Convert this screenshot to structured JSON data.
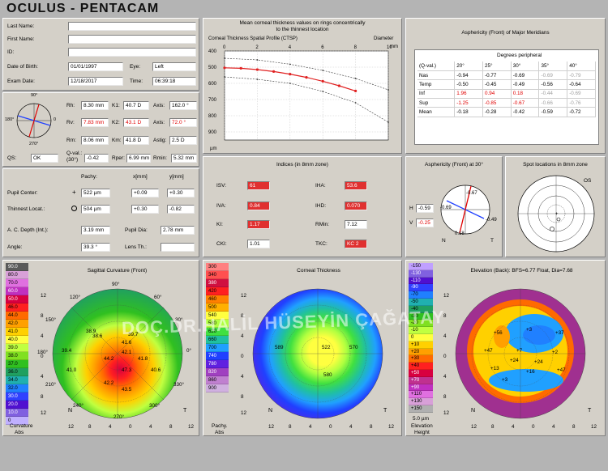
{
  "app_title": "OCULUS  -  PENTACAM",
  "patient": {
    "last_name_label": "Last Name:",
    "first_name_label": "First Name:",
    "id_label": "ID:",
    "dob_label": "Date of Birth:",
    "dob_value": "01/01/1997",
    "eye_label": "Eye:",
    "eye_value": "Left",
    "exam_date_label": "Exam Date:",
    "exam_date_value": "12/18/2017",
    "time_label": "Time:",
    "time_value": "06:39:18"
  },
  "kerato": {
    "rh_label": "Rh:",
    "rh": "8.30 mm",
    "k1_label": "K1:",
    "k1": "40.7 D",
    "axis1_label": "Axis:",
    "axis1": "162.0 °",
    "rv_label": "Rv:",
    "rv": "7.83 mm",
    "k2_label": "K2:",
    "k2": "43.1 D",
    "axis2_label": "Axis:",
    "axis2": "72.0 °",
    "rm_label": "Rm:",
    "rm": "8.06 mm",
    "km_label": "Km:",
    "km": "41.8 D",
    "astig_label": "Astig:",
    "astig": "2.5 D",
    "qs_label": "QS:",
    "qs": "OK",
    "qval_label": "Q-val.:",
    "qval_sub": "(30°)",
    "qval": "-0.42",
    "rper_label": "Rper:",
    "rper": "6.99 mm",
    "rmin_label": "Rmin:",
    "rmin": "5.32 mm",
    "dial_top": "90°",
    "dial_bottom": "270°",
    "dial_left": "180°",
    "dial_right": "0"
  },
  "pachy": {
    "col_pachy": "Pachy:",
    "col_x": "x[mm]",
    "col_y": "y[mm]",
    "pupil_center_label": "Pupil Center:",
    "pupil_center_pachy": "522 µm",
    "pupil_center_x": "+0.09",
    "pupil_center_y": "+0.30",
    "thinnest_label": "Thinnest Locat.:",
    "thinnest_pachy": "504 µm",
    "thinnest_x": "+0.30",
    "thinnest_y": "-0.82",
    "ac_depth_label": "A. C. Depth (Int.):",
    "ac_depth": "3.19 mm",
    "pupil_dia_label": "Pupil Dia:",
    "pupil_dia": "2.78 mm",
    "angle_label": "Angle:",
    "angle": "39.3 °",
    "lens_label": "Lens Th.:",
    "lens": ""
  },
  "thickness_graph": {
    "title_line1": "Mean corneal thickness values on rings concentrically",
    "title_line2": "to the thinnest location",
    "subtitle": "Corneal Thickness Spatial Profile (CTSP)",
    "diameter_label": "Diameter",
    "mm_label": "mm",
    "x_ticks": [
      "0",
      "2",
      "4",
      "6",
      "8",
      "10"
    ],
    "y_ticks": [
      "400",
      "500",
      "600",
      "700",
      "800",
      "900"
    ],
    "y_unit": "µm"
  },
  "chart_data": {
    "type": "line",
    "subtitle": "Corneal Thickness Spatial Profile (CTSP)",
    "xlabel": "Diameter mm",
    "ylabel": "µm",
    "xlim": [
      0,
      10
    ],
    "ylim": [
      400,
      950
    ],
    "y_inverted": true,
    "series": [
      {
        "x": [
          0,
          1,
          2,
          3,
          4,
          5,
          6,
          7,
          8
        ],
        "values": [
          504,
          507,
          515,
          527,
          543,
          563,
          587,
          615,
          647
        ]
      },
      {
        "x": [
          0,
          2,
          4,
          6,
          8,
          10
        ],
        "values": [
          445,
          455,
          482,
          520,
          570,
          640
        ]
      },
      {
        "x": [
          0,
          2,
          4,
          6,
          8,
          10
        ],
        "values": [
          560,
          575,
          600,
          650,
          720,
          840
        ]
      }
    ]
  },
  "asphericity": {
    "title": "Asphericity (Front) of Major Meridians",
    "degrees_label": "Degrees peripheral",
    "headers": [
      "(Q-val.)",
      "20°",
      "25°",
      "30°",
      "35°",
      "40°"
    ],
    "rows": [
      {
        "name": "Nas",
        "values": [
          "-0.94",
          "-0.77",
          "-0.69",
          "-0.69",
          "-0.79"
        ]
      },
      {
        "name": "Temp",
        "values": [
          "-0.50",
          "-0.45",
          "-0.49",
          "-0.56",
          "-0.64"
        ]
      },
      {
        "name": "Inf",
        "values": [
          "1.96",
          "0.94",
          "0.18",
          "-0.44",
          "-0.69"
        ]
      },
      {
        "name": "Sup",
        "values": [
          "-1.25",
          "-0.85",
          "-0.67",
          "-0.66",
          "-0.76"
        ]
      },
      {
        "name": "Mean",
        "values": [
          "-0.18",
          "-0.28",
          "-0.42",
          "-0.59",
          "-0.72"
        ]
      }
    ]
  },
  "indices": {
    "title": "Indices (in 8mm zone)",
    "isv_label": "ISV:",
    "isv": "61",
    "iha_label": "IHA:",
    "iha": "53.6",
    "iva_label": "IVA:",
    "iva": "0.84",
    "ihd_label": "IHD:",
    "ihd": "0.070",
    "ki_label": "KI:",
    "ki": "1.17",
    "rmin_label": "RMin:",
    "rmin": "7.12",
    "cki_label": "CKI:",
    "cki": "1.01",
    "tkc_label": "TKC:",
    "tkc": "KC 2"
  },
  "asph30": {
    "title": "Asphericity (Front) at 30°",
    "h_label": "H",
    "h_value": "-0.59",
    "v_label": "V",
    "v_value": "-0.25",
    "top": "-0.67",
    "left": "-0.69",
    "right": "-0.49",
    "bottom": "0.18",
    "n_label": "N",
    "t_label": "T"
  },
  "spot": {
    "title": "Spot locations in 8mm zone",
    "os_label": "OS"
  },
  "sagittal": {
    "title": "Sagittal Curvature (Front)",
    "scale": [
      "90.0",
      "80.0",
      "70.0",
      "60.0",
      "50.0",
      "46.0",
      "44.0",
      "42.0",
      "41.0",
      "40.0",
      "39.0",
      "38.0",
      "37.0",
      "36.0",
      "34.0",
      "32.0",
      "30.0",
      "20.0",
      "10.0",
      "0"
    ],
    "scale_colors": [
      "#5a5a5a",
      "#d8a0d8",
      "#e070e0",
      "#c030c0",
      "#d80040",
      "#ff2020",
      "#ff6a00",
      "#ffa000",
      "#ffd000",
      "#ffff40",
      "#c0ff40",
      "#80e020",
      "#30c020",
      "#20a060",
      "#20b0b0",
      "#2080ff",
      "#3040ff",
      "#5010d0",
      "#8060e0",
      "#c0b0ff"
    ],
    "footer1": "Curvature",
    "footer2": "Abs",
    "values": [
      "38.9",
      "38.6",
      "39.7",
      "39.4",
      "44.2",
      "42.1",
      "41.8",
      "40.6",
      "41.0",
      "47.3",
      "42.2",
      "43.5",
      "41.6"
    ],
    "ang": [
      "90°",
      "60°",
      "30°",
      "0°",
      "330°",
      "300°",
      "270°",
      "240°",
      "210°",
      "180°",
      "150°",
      "120°"
    ],
    "n": "N",
    "t": "T"
  },
  "thickness_map": {
    "title": "Corneal Thickness",
    "scale": [
      "300",
      "340",
      "380",
      "420",
      "460",
      "500",
      "540",
      "580",
      "620",
      "660",
      "700",
      "740",
      "780",
      "820",
      "860",
      "900"
    ],
    "scale_colors": [
      "#ff8080",
      "#ff5050",
      "#d01040",
      "#ff2020",
      "#ff8000",
      "#ffb000",
      "#ffff40",
      "#b0ff40",
      "#40e040",
      "#20c0a0",
      "#20a0ff",
      "#2040ff",
      "#6020e0",
      "#a040c0",
      "#c080d0",
      "#d0b0e0"
    ],
    "footer1": "Pachy.",
    "footer2": "Abs",
    "center": "522",
    "left": "589",
    "right": "570",
    "bottom": "580",
    "n": "N",
    "t": "T"
  },
  "elevation": {
    "title": "Elevation (Back): BFS=6.77 Float, Dia=7.68",
    "scale": [
      "-150",
      "-130",
      "-110",
      "-90",
      "-70",
      "-50",
      "-40",
      "-30",
      "-20",
      "-10",
      "0",
      "+10",
      "+20",
      "+30",
      "+40",
      "+50",
      "+70",
      "+90",
      "+110",
      "+130",
      "+150"
    ],
    "scale_colors": [
      "#c0a0ff",
      "#8060e0",
      "#5010d0",
      "#3040ff",
      "#2080ff",
      "#20b0b0",
      "#20a060",
      "#30c020",
      "#80e020",
      "#c0ff40",
      "#ffff40",
      "#ffd000",
      "#ffa000",
      "#ff6a00",
      "#ff2020",
      "#d80040",
      "#c03090",
      "#c030c0",
      "#e070e0",
      "#d8a0d8",
      "#b0b0b0"
    ],
    "footer0": "5.0 µm",
    "footer1": "Elevation",
    "footer2": "Height",
    "values": [
      "+56",
      "+3",
      "+24",
      "+37",
      "+47",
      "+7",
      "+24",
      "+16",
      "+47",
      "+3",
      "+13",
      "+2"
    ],
    "n": "N",
    "t": "T"
  },
  "axis_ticks": [
    "12",
    "8",
    "4",
    "0",
    "4",
    "8",
    "12"
  ],
  "watermark": "DOÇ.DR.HALİL HÜSEYİN ÇAĞATAY"
}
